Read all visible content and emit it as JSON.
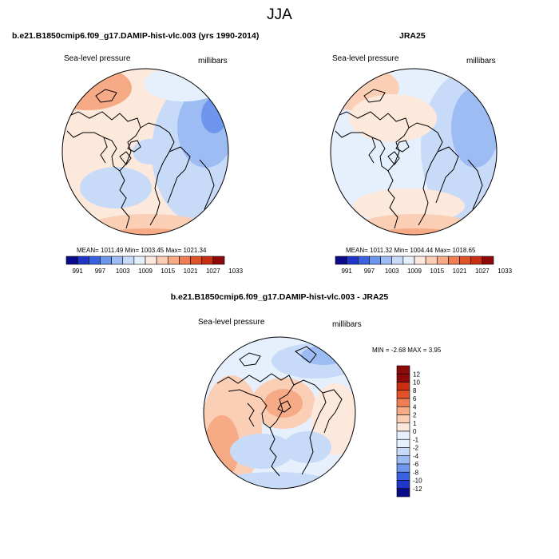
{
  "main_title": "JJA",
  "palette": [
    "#0a0a8a",
    "#1f36c7",
    "#3a62e0",
    "#6d96ec",
    "#9ebcf4",
    "#c7dbf9",
    "#e6f0fd",
    "#fde8dc",
    "#fbcfb6",
    "#f6aa86",
    "#ef7e55",
    "#e0522a",
    "#c92d12",
    "#8c0a0a"
  ],
  "panels": {
    "model": {
      "title": "b.e21.B1850cmip6.f09_g17.DAMIP-hist-vlc.003 (yrs 1990-2014)",
      "field_label": "Sea-level pressure",
      "units": "millibars",
      "stats": "MEAN= 1011.49  Min= 1003.45  Max= 1021.34",
      "colorbar_ticks": [
        "991",
        "997",
        "1003",
        "1009",
        "1015",
        "1021",
        "1027",
        "1033"
      ]
    },
    "obs": {
      "title": "JRA25",
      "field_label": "Sea-level pressure",
      "units": "millibars",
      "stats": "MEAN= 1011.32  Min= 1004.44  Max= 1018.65",
      "colorbar_ticks": [
        "991",
        "997",
        "1003",
        "1009",
        "1015",
        "1021",
        "1027",
        "1033"
      ]
    },
    "diff": {
      "title": "b.e21.B1850cmip6.f09_g17.DAMIP-hist-vlc.003 - JRA25",
      "field_label": "Sea-level pressure",
      "units": "millibars",
      "stats": "MIN =  -2.68 MAX =   3.95",
      "colorbar_ticks": [
        "12",
        "10",
        "8",
        "6",
        "4",
        "2",
        "1",
        "0",
        "-1",
        "-2",
        "-4",
        "-6",
        "-8",
        "-10",
        "-12"
      ]
    }
  }
}
